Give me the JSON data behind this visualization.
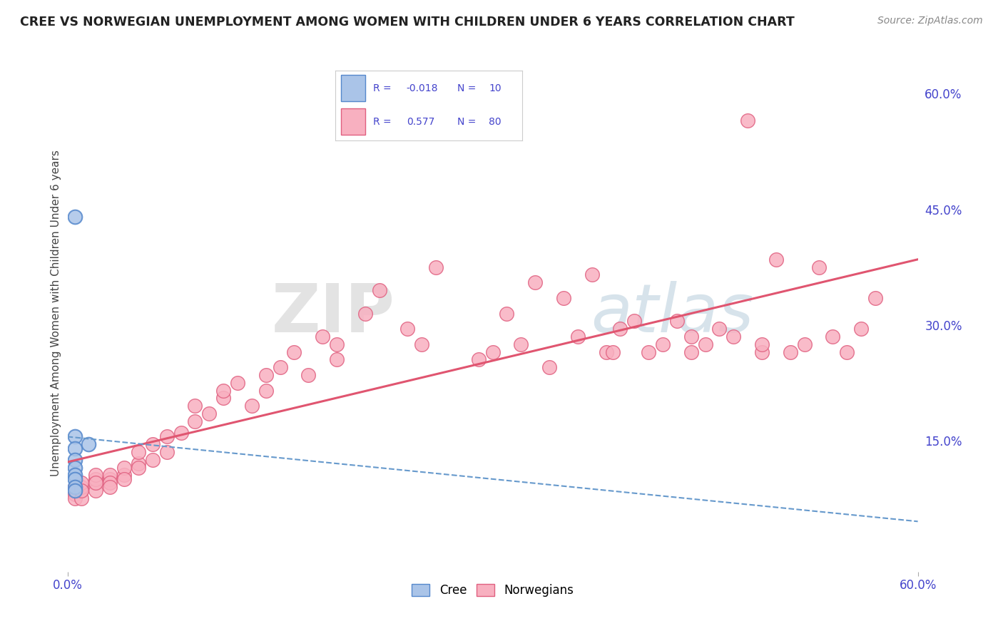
{
  "title": "CREE VS NORWEGIAN UNEMPLOYMENT AMONG WOMEN WITH CHILDREN UNDER 6 YEARS CORRELATION CHART",
  "source": "Source: ZipAtlas.com",
  "ylabel": "Unemployment Among Women with Children Under 6 years",
  "right_yticks": [
    "60.0%",
    "45.0%",
    "30.0%",
    "15.0%"
  ],
  "right_ytick_vals": [
    0.6,
    0.45,
    0.3,
    0.15
  ],
  "xlim": [
    0.0,
    0.6
  ],
  "ylim": [
    -0.02,
    0.65
  ],
  "legend_R_color": "#4444cc",
  "legend_N_color": "#4444cc",
  "cree_color": "#aac4e8",
  "cree_edge_color": "#5588cc",
  "norwegian_color": "#f8b0c0",
  "norwegian_edge_color": "#e06080",
  "trend_cree_color": "#6699cc",
  "trend_norwegian_color": "#e05570",
  "background_color": "#ffffff",
  "grid_color": "#dddddd",
  "watermark_color": "#cccccc",
  "tick_color": "#4444cc",
  "title_color": "#222222",
  "source_color": "#888888",
  "cree_x": [
    0.005,
    0.005,
    0.005,
    0.005,
    0.005,
    0.005,
    0.005,
    0.005,
    0.005,
    0.015
  ],
  "cree_y": [
    0.44,
    0.155,
    0.14,
    0.125,
    0.115,
    0.105,
    0.1,
    0.09,
    0.085,
    0.145
  ],
  "norwegian_x": [
    0.005,
    0.005,
    0.005,
    0.01,
    0.01,
    0.01,
    0.01,
    0.01,
    0.02,
    0.02,
    0.02,
    0.02,
    0.02,
    0.03,
    0.03,
    0.03,
    0.03,
    0.04,
    0.04,
    0.04,
    0.05,
    0.05,
    0.05,
    0.06,
    0.06,
    0.07,
    0.07,
    0.08,
    0.09,
    0.09,
    0.1,
    0.11,
    0.11,
    0.12,
    0.13,
    0.14,
    0.14,
    0.15,
    0.16,
    0.17,
    0.18,
    0.19,
    0.19,
    0.21,
    0.22,
    0.24,
    0.25,
    0.26,
    0.29,
    0.3,
    0.31,
    0.32,
    0.33,
    0.34,
    0.35,
    0.36,
    0.37,
    0.38,
    0.385,
    0.39,
    0.4,
    0.41,
    0.42,
    0.43,
    0.44,
    0.44,
    0.45,
    0.46,
    0.47,
    0.48,
    0.49,
    0.49,
    0.5,
    0.51,
    0.52,
    0.53,
    0.54,
    0.55,
    0.56,
    0.57
  ],
  "norwegian_y": [
    0.08,
    0.09,
    0.075,
    0.085,
    0.075,
    0.09,
    0.095,
    0.085,
    0.095,
    0.085,
    0.1,
    0.105,
    0.095,
    0.1,
    0.105,
    0.095,
    0.09,
    0.105,
    0.115,
    0.1,
    0.12,
    0.115,
    0.135,
    0.145,
    0.125,
    0.155,
    0.135,
    0.16,
    0.175,
    0.195,
    0.185,
    0.205,
    0.215,
    0.225,
    0.195,
    0.235,
    0.215,
    0.245,
    0.265,
    0.235,
    0.285,
    0.275,
    0.255,
    0.315,
    0.345,
    0.295,
    0.275,
    0.375,
    0.255,
    0.265,
    0.315,
    0.275,
    0.355,
    0.245,
    0.335,
    0.285,
    0.365,
    0.265,
    0.265,
    0.295,
    0.305,
    0.265,
    0.275,
    0.305,
    0.265,
    0.285,
    0.275,
    0.295,
    0.285,
    0.565,
    0.265,
    0.275,
    0.385,
    0.265,
    0.275,
    0.375,
    0.285,
    0.265,
    0.295,
    0.335
  ]
}
